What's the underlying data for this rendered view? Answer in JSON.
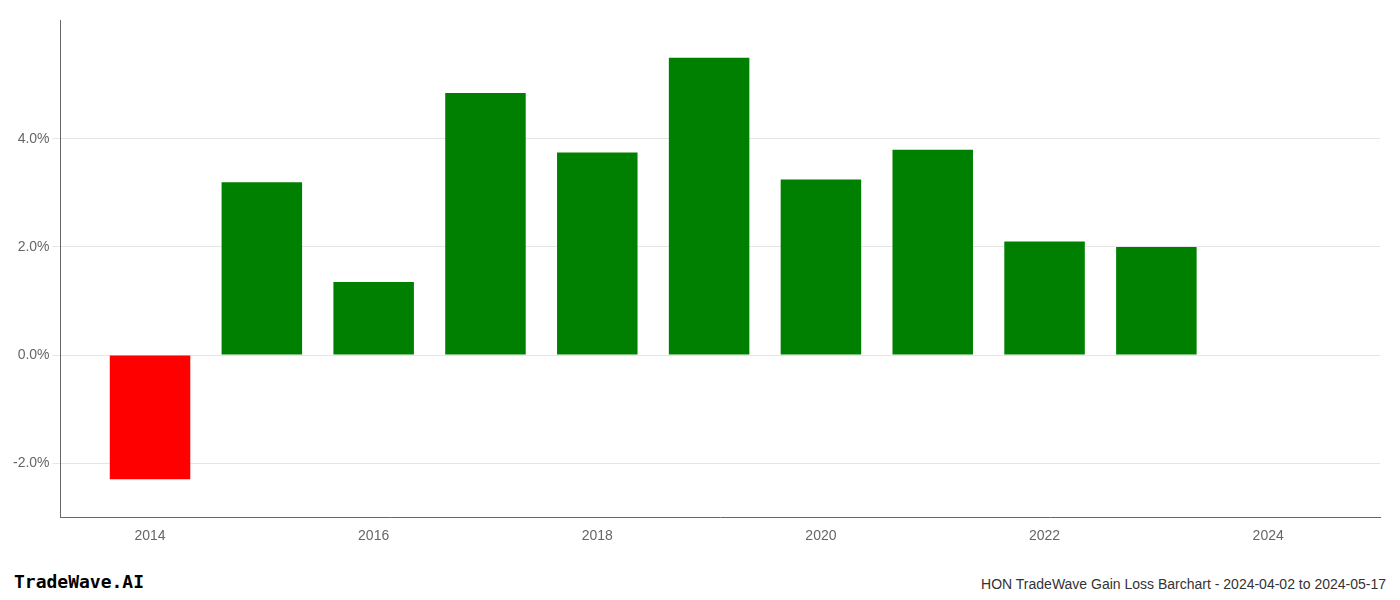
{
  "chart_data": {
    "type": "bar",
    "title": "HON TradeWave Gain Loss Barchart - 2024-04-02 to 2024-05-17",
    "annotations": [
      "TradeWave.AI"
    ],
    "x": [
      2014,
      2015,
      2016,
      2017,
      2018,
      2019,
      2020,
      2021,
      2022,
      2023
    ],
    "values": [
      -0.023,
      0.032,
      0.0135,
      0.0485,
      0.0375,
      0.055,
      0.0325,
      0.038,
      0.021,
      0.02
    ],
    "colors": [
      "#ff0000",
      "#008000",
      "#008000",
      "#008000",
      "#008000",
      "#008000",
      "#008000",
      "#008000",
      "#008000",
      "#008000"
    ],
    "xlim": [
      2013.2,
      2025.0
    ],
    "xticks": [
      2014,
      2016,
      2018,
      2020,
      2022,
      2024
    ],
    "ylim": [
      -0.03,
      0.062
    ],
    "yticks": [
      {
        "value": -0.02,
        "label": "-2.0%"
      },
      {
        "value": 0.0,
        "label": "0.0%"
      },
      {
        "value": 0.02,
        "label": "2.0%"
      },
      {
        "value": 0.04,
        "label": "4.0%"
      }
    ],
    "grid": "y",
    "legend": false
  }
}
